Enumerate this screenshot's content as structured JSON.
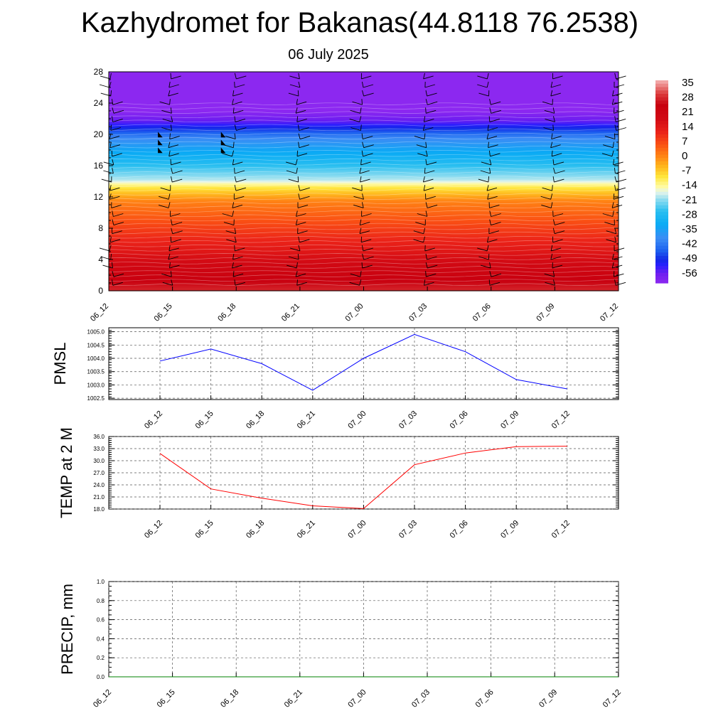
{
  "header": {
    "title": "Kazhydromet for Bakanas(44.8118 76.2538)",
    "subtitle": "06 July 2025"
  },
  "chart_data": [
    {
      "type": "heatmap",
      "name": "vertical-temperature-wind-section",
      "x_labels": [
        "06_12",
        "06_15",
        "06_18",
        "06_21",
        "07_00",
        "07_03",
        "07_06",
        "07_09",
        "07_12"
      ],
      "y_ticks": [
        0,
        4,
        8,
        12,
        16,
        20,
        24,
        28
      ],
      "ylim": [
        0,
        28
      ],
      "colorbar": {
        "labels": [
          "35",
          "28",
          "21",
          "14",
          "7",
          "0",
          "-7",
          "-14",
          "-21",
          "-28",
          "-35",
          "-42",
          "-49",
          "-56"
        ],
        "range": [
          -63,
          42
        ]
      },
      "temperature_profile": [
        {
          "level": 0,
          "value": 33
        },
        {
          "level": 3,
          "value": 24
        },
        {
          "level": 6,
          "value": 16
        },
        {
          "level": 9,
          "value": 9
        },
        {
          "level": 11.5,
          "value": 3
        },
        {
          "level": 13.2,
          "value": -8
        },
        {
          "level": 14.2,
          "value": -18
        },
        {
          "level": 17,
          "value": -30
        },
        {
          "level": 19.5,
          "value": -40
        },
        {
          "level": 21.5,
          "value": -56
        },
        {
          "level": 23,
          "value": -63
        },
        {
          "level": 28,
          "value": -63
        }
      ],
      "wind_barbs": "black wind barbs plotted at each time column"
    },
    {
      "type": "line",
      "name": "pmsl",
      "ylabel": "PMSL",
      "categories": [
        "06_12",
        "06_15",
        "06_18",
        "06_21",
        "07_00",
        "07_03",
        "07_06",
        "07_09",
        "07_12"
      ],
      "series": [
        {
          "color": "#0000ff",
          "values": [
            1003.9,
            1004.35,
            1003.8,
            1002.8,
            1004.0,
            1004.9,
            1004.25,
            1003.2,
            1002.85
          ]
        }
      ],
      "y_ticks": [
        "1002.5",
        "1003.0",
        "1003.5",
        "1004.0",
        "1004.5",
        "1005.0"
      ],
      "ylim": [
        1002.45,
        1005.15
      ]
    },
    {
      "type": "line",
      "name": "temp-2m",
      "ylabel": "TEMP at 2 M",
      "categories": [
        "06_12",
        "06_15",
        "06_18",
        "06_21",
        "07_00",
        "07_03",
        "07_06",
        "07_09",
        "07_12"
      ],
      "series": [
        {
          "color": "#ff0000",
          "values": [
            31.8,
            23.0,
            20.7,
            18.8,
            18.1,
            29.0,
            31.9,
            33.5,
            33.6
          ]
        }
      ],
      "y_ticks": [
        "18.0",
        "21.0",
        "24.0",
        "27.0",
        "30.0",
        "33.0",
        "36.0"
      ],
      "ylim": [
        18.0,
        36.0
      ]
    },
    {
      "type": "line",
      "name": "precip",
      "ylabel": "PRECIP, mm",
      "categories": [
        "06_12",
        "06_15",
        "06_18",
        "06_21",
        "07_00",
        "07_03",
        "07_06",
        "07_09",
        "07_12"
      ],
      "series": [
        {
          "color": "#008000",
          "values": [
            0,
            0,
            0,
            0,
            0,
            0,
            0,
            0,
            0
          ]
        }
      ],
      "y_ticks": [
        "0.0",
        "0.2",
        "0.4",
        "0.6",
        "0.8",
        "1.0"
      ],
      "ylim": [
        0,
        1.0
      ]
    }
  ]
}
